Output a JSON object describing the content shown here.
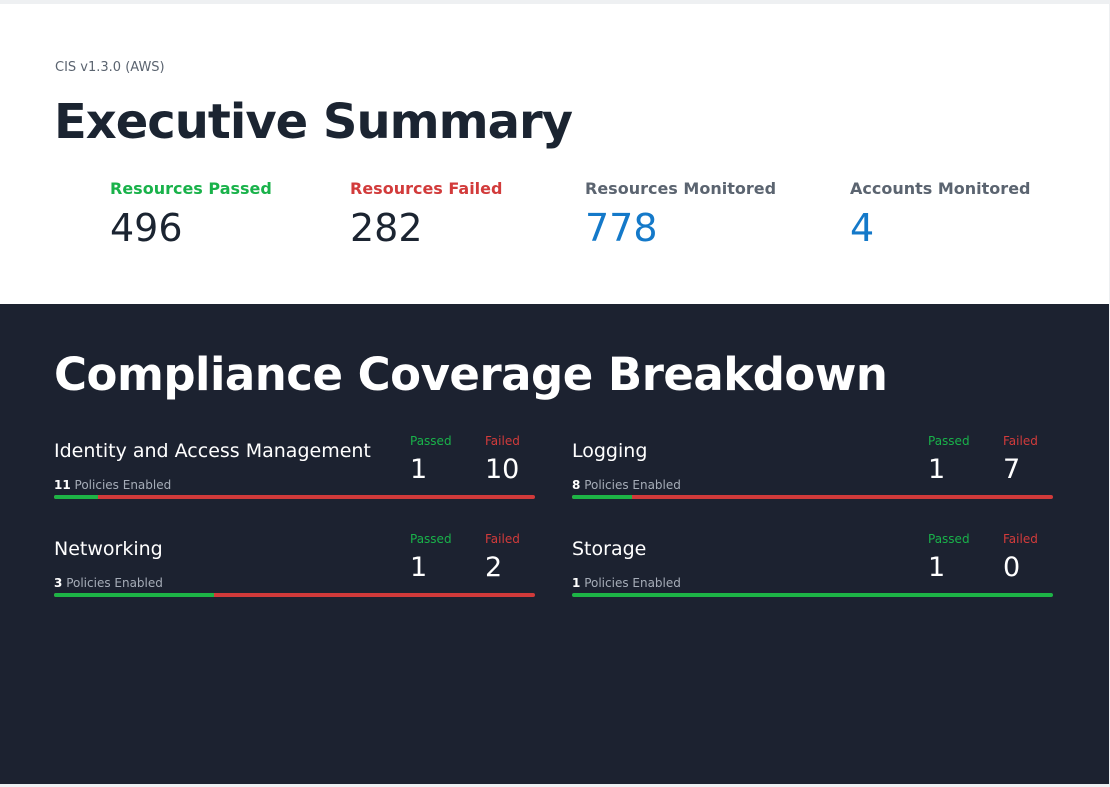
{
  "colors": {
    "passed": "#19b24a",
    "failed": "#d23b3b",
    "neutral": "#5b6470",
    "accent": "#1479c9"
  },
  "summary": {
    "framework": "CIS v1.3.0 (AWS)",
    "title": "Executive Summary",
    "stats": [
      {
        "label": "Resources Passed",
        "value": "496"
      },
      {
        "label": "Resources Failed",
        "value": "282"
      },
      {
        "label": "Resources Monitored",
        "value": "778"
      },
      {
        "label": "Accounts Monitored",
        "value": "4"
      }
    ]
  },
  "breakdown": {
    "title": "Compliance Coverage Breakdown",
    "passed_label": "Passed",
    "failed_label": "Failed",
    "policies_suffix": "Policies Enabled",
    "categories": [
      {
        "name": "Identity and Access Management",
        "policies": "11",
        "passed": "1",
        "failed": "10",
        "pass_fraction": 0.091
      },
      {
        "name": "Logging",
        "policies": "8",
        "passed": "1",
        "failed": "7",
        "pass_fraction": 0.125
      },
      {
        "name": "Networking",
        "policies": "3",
        "passed": "1",
        "failed": "2",
        "pass_fraction": 0.333
      },
      {
        "name": "Storage",
        "policies": "1",
        "passed": "1",
        "failed": "0",
        "pass_fraction": 1.0
      }
    ]
  }
}
